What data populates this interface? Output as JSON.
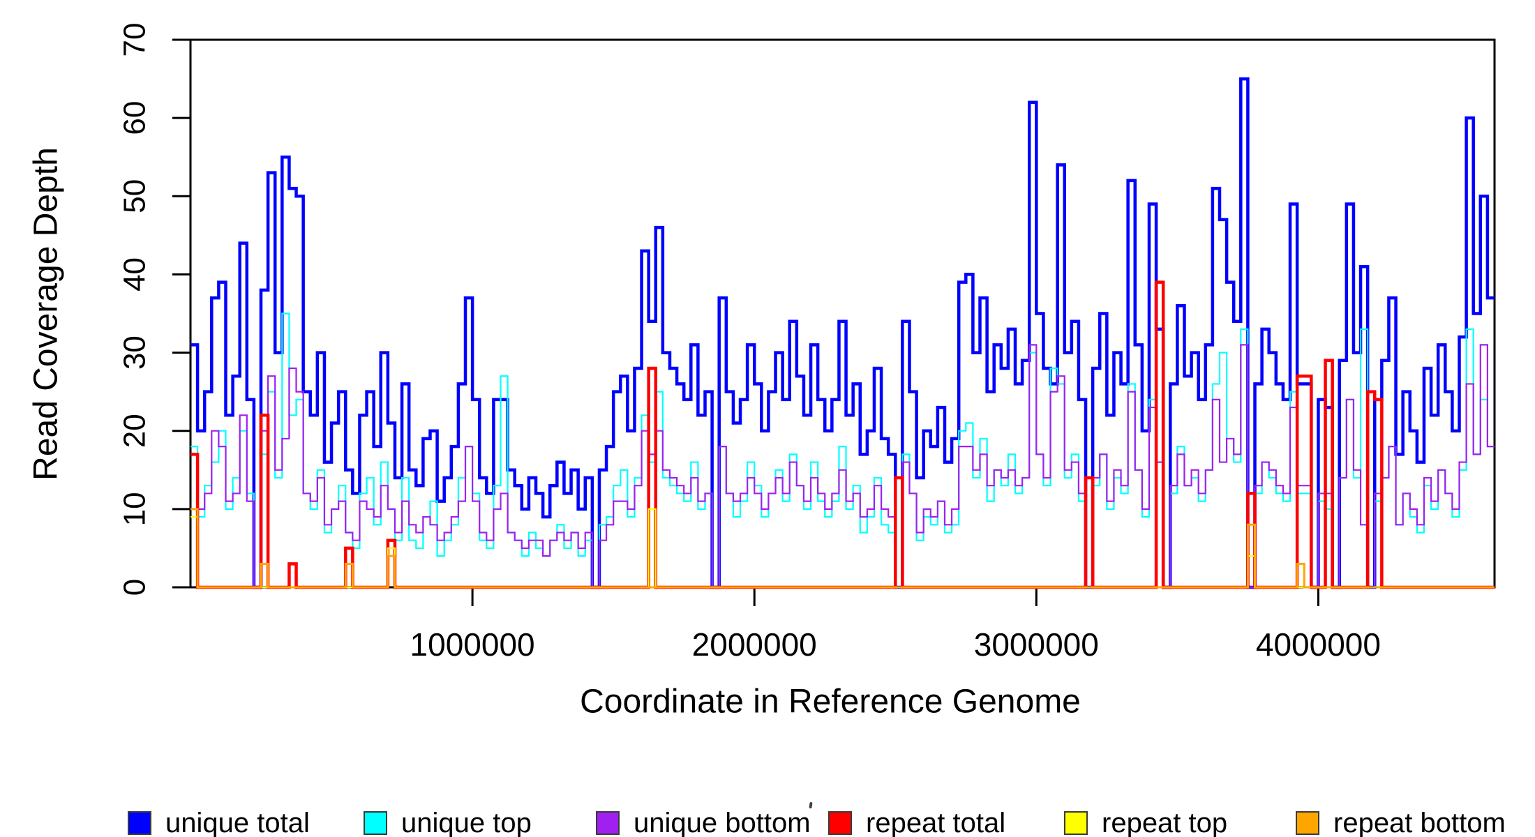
{
  "figure": {
    "ylabel": "Read Coverage Depth",
    "xlabel": "Coordinate in Reference Genome",
    "y_ticks": [
      {
        "value": 0,
        "label": "0"
      },
      {
        "value": 10,
        "label": "10"
      },
      {
        "value": 20,
        "label": "20"
      },
      {
        "value": 30,
        "label": "30"
      },
      {
        "value": 40,
        "label": "40"
      },
      {
        "value": 50,
        "label": "50"
      },
      {
        "value": 60,
        "label": "60"
      },
      {
        "value": 70,
        "label": "70"
      }
    ],
    "x_ticks": [
      {
        "value": 1000000,
        "label": "1000000"
      },
      {
        "value": 2000000,
        "label": "2000000"
      },
      {
        "value": 3000000,
        "label": "3000000"
      },
      {
        "value": 4000000,
        "label": "4000000"
      }
    ]
  },
  "legend": {
    "items": [
      {
        "label": "unique total",
        "color": "#0000ff"
      },
      {
        "label": "unique top",
        "color": "#00ffff"
      },
      {
        "label": "unique bottom",
        "color": "#a020f0"
      },
      {
        "label": "repeat total",
        "color": "#ff0000"
      },
      {
        "label": "repeat top",
        "color": "#ffff00"
      },
      {
        "label": "repeat bottom",
        "color": "#ffa500"
      }
    ]
  },
  "chart_data": {
    "type": "line",
    "subtype": "step",
    "title": "",
    "xlabel": "Coordinate in Reference Genome",
    "ylabel": "Read Coverage Depth",
    "xlim": [
      0,
      4625000
    ],
    "ylim": [
      0,
      70
    ],
    "grid": false,
    "legend_position": "bottom",
    "bin_size": 25000,
    "x_start": 0,
    "series": [
      {
        "name": "unique total",
        "color": "#0000ff",
        "line_width": 4.5,
        "values": [
          31,
          20,
          25,
          37,
          39,
          22,
          27,
          44,
          24,
          0,
          38,
          53,
          30,
          55,
          51,
          50,
          25,
          22,
          30,
          16,
          21,
          25,
          15,
          12,
          22,
          25,
          18,
          30,
          21,
          14,
          26,
          15,
          13,
          19,
          20,
          11,
          14,
          18,
          26,
          37,
          24,
          14,
          12,
          24,
          24,
          15,
          13,
          10,
          14,
          12,
          9,
          13,
          16,
          12,
          15,
          10,
          14,
          0,
          15,
          18,
          25,
          27,
          20,
          28,
          43,
          34,
          46,
          30,
          28,
          26,
          24,
          31,
          22,
          25,
          0,
          37,
          25,
          21,
          24,
          31,
          26,
          20,
          25,
          30,
          24,
          34,
          27,
          22,
          31,
          24,
          20,
          24,
          34,
          22,
          26,
          17,
          20,
          28,
          19,
          17,
          0,
          34,
          25,
          14,
          20,
          18,
          23,
          16,
          19,
          39,
          40,
          30,
          37,
          25,
          31,
          28,
          33,
          26,
          29,
          62,
          35,
          28,
          26,
          54,
          30,
          34,
          24,
          0,
          28,
          35,
          22,
          30,
          26,
          52,
          31,
          20,
          49,
          33,
          0,
          26,
          36,
          27,
          30,
          24,
          31,
          51,
          47,
          39,
          34,
          65,
          0,
          26,
          33,
          30,
          26,
          24,
          49,
          26,
          26,
          0,
          24,
          23,
          0,
          29,
          49,
          30,
          41,
          0,
          24,
          29,
          37,
          17,
          25,
          20,
          16,
          28,
          22,
          31,
          25,
          20,
          32,
          60,
          35,
          50,
          37
        ]
      },
      {
        "name": "unique top",
        "color": "#00ffff",
        "line_width": 2.2,
        "values": [
          18,
          9,
          13,
          16,
          20,
          10,
          14,
          20,
          12,
          0,
          17,
          25,
          14,
          35,
          22,
          24,
          12,
          10,
          15,
          7,
          10,
          13,
          7,
          5,
          12,
          14,
          8,
          16,
          10,
          6,
          14,
          6,
          5,
          9,
          11,
          4,
          6,
          8,
          14,
          18,
          12,
          6,
          5,
          13,
          27,
          7,
          6,
          4,
          7,
          5,
          4,
          6,
          8,
          5,
          7,
          4,
          6,
          0,
          8,
          9,
          13,
          15,
          9,
          14,
          22,
          16,
          25,
          14,
          13,
          12,
          11,
          16,
          10,
          12,
          0,
          18,
          12,
          9,
          11,
          16,
          13,
          9,
          12,
          15,
          11,
          17,
          13,
          10,
          16,
          11,
          9,
          11,
          18,
          10,
          13,
          7,
          9,
          14,
          8,
          7,
          0,
          17,
          12,
          6,
          9,
          8,
          11,
          7,
          8,
          20,
          21,
          14,
          19,
          11,
          15,
          13,
          17,
          12,
          14,
          30,
          17,
          13,
          28,
          26,
          14,
          17,
          11,
          0,
          13,
          17,
          10,
          14,
          12,
          26,
          15,
          9,
          24,
          16,
          0,
          12,
          18,
          13,
          14,
          11,
          15,
          26,
          30,
          19,
          16,
          33,
          0,
          12,
          16,
          14,
          12,
          11,
          25,
          12,
          12,
          0,
          11,
          10,
          0,
          14,
          24,
          14,
          33,
          0,
          11,
          14,
          18,
          8,
          12,
          9,
          7,
          13,
          10,
          15,
          12,
          9,
          15,
          33,
          17,
          24,
          18
        ]
      },
      {
        "name": "unique bottom",
        "color": "#a020f0",
        "line_width": 2.2,
        "values": [
          17,
          10,
          12,
          20,
          18,
          11,
          12,
          22,
          11,
          0,
          20,
          27,
          15,
          19,
          28,
          25,
          12,
          11,
          14,
          8,
          10,
          11,
          7,
          6,
          11,
          10,
          9,
          13,
          10,
          7,
          11,
          8,
          7,
          9,
          8,
          6,
          7,
          9,
          11,
          18,
          11,
          7,
          6,
          10,
          12,
          7,
          6,
          5,
          6,
          6,
          4,
          6,
          7,
          6,
          7,
          5,
          7,
          0,
          6,
          8,
          11,
          11,
          10,
          13,
          20,
          17,
          20,
          15,
          14,
          13,
          12,
          14,
          11,
          12,
          0,
          18,
          12,
          11,
          12,
          14,
          12,
          10,
          12,
          14,
          12,
          16,
          13,
          11,
          14,
          12,
          10,
          12,
          15,
          11,
          12,
          9,
          10,
          13,
          10,
          9,
          0,
          16,
          12,
          7,
          10,
          9,
          11,
          8,
          10,
          18,
          18,
          15,
          17,
          13,
          15,
          14,
          15,
          13,
          14,
          31,
          17,
          14,
          25,
          27,
          15,
          16,
          12,
          0,
          14,
          17,
          11,
          15,
          13,
          25,
          15,
          10,
          23,
          16,
          0,
          13,
          17,
          13,
          15,
          12,
          15,
          24,
          16,
          19,
          17,
          31,
          0,
          13,
          16,
          15,
          13,
          12,
          23,
          13,
          13,
          0,
          12,
          12,
          0,
          14,
          24,
          15,
          8,
          0,
          12,
          14,
          18,
          8,
          12,
          10,
          8,
          14,
          11,
          15,
          12,
          10,
          16,
          26,
          17,
          31,
          18
        ]
      },
      {
        "name": "repeat total",
        "color": "#ff0000",
        "line_width": 4.5,
        "baseline": 0,
        "spikes": [
          [
            0,
            17
          ],
          [
            10,
            22
          ],
          [
            14,
            3
          ],
          [
            22,
            5
          ],
          [
            28,
            6
          ],
          [
            65,
            28
          ],
          [
            100,
            14
          ],
          [
            127,
            14
          ],
          [
            137,
            39
          ],
          [
            150,
            12
          ],
          [
            157,
            27
          ],
          [
            158,
            27
          ],
          [
            161,
            29
          ],
          [
            167,
            25
          ],
          [
            168,
            24
          ]
        ]
      },
      {
        "name": "repeat top",
        "color": "#ffff00",
        "line_width": 2.2,
        "baseline": 0,
        "spikes": [
          [
            0,
            9
          ],
          [
            28,
            5
          ],
          [
            65,
            10
          ],
          [
            150,
            4
          ]
        ]
      },
      {
        "name": "repeat bottom",
        "color": "#ffa500",
        "line_width": 3,
        "baseline": 0,
        "spikes": [
          [
            0,
            10
          ],
          [
            10,
            3
          ],
          [
            22,
            3
          ],
          [
            28,
            4
          ],
          [
            150,
            8
          ],
          [
            157,
            3
          ]
        ]
      }
    ]
  }
}
